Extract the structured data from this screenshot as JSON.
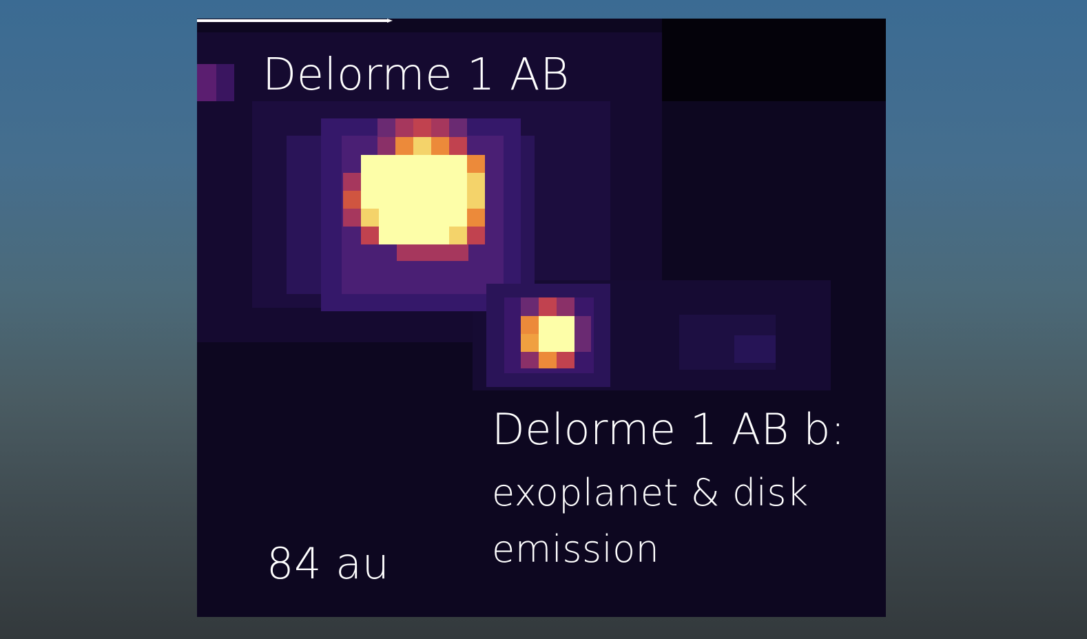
{
  "image": {
    "primary_label": "Delorme 1 AB",
    "secondary_label": "Delorme 1 AB b:",
    "secondary_description": "exoplanet & disk emission",
    "scale_label": "84 au",
    "colors": {
      "background_top": "#3b6b93",
      "background_bottom": "#33393c",
      "sky": "#0d0720",
      "faint_glow": "#2a1458",
      "halo": "#6a2a72",
      "ring_red": "#c1424f",
      "ring_orange": "#ec8a3a",
      "ring_yellow": "#f4d36a",
      "core": "#fdfea8",
      "text": "#ffffff"
    }
  }
}
